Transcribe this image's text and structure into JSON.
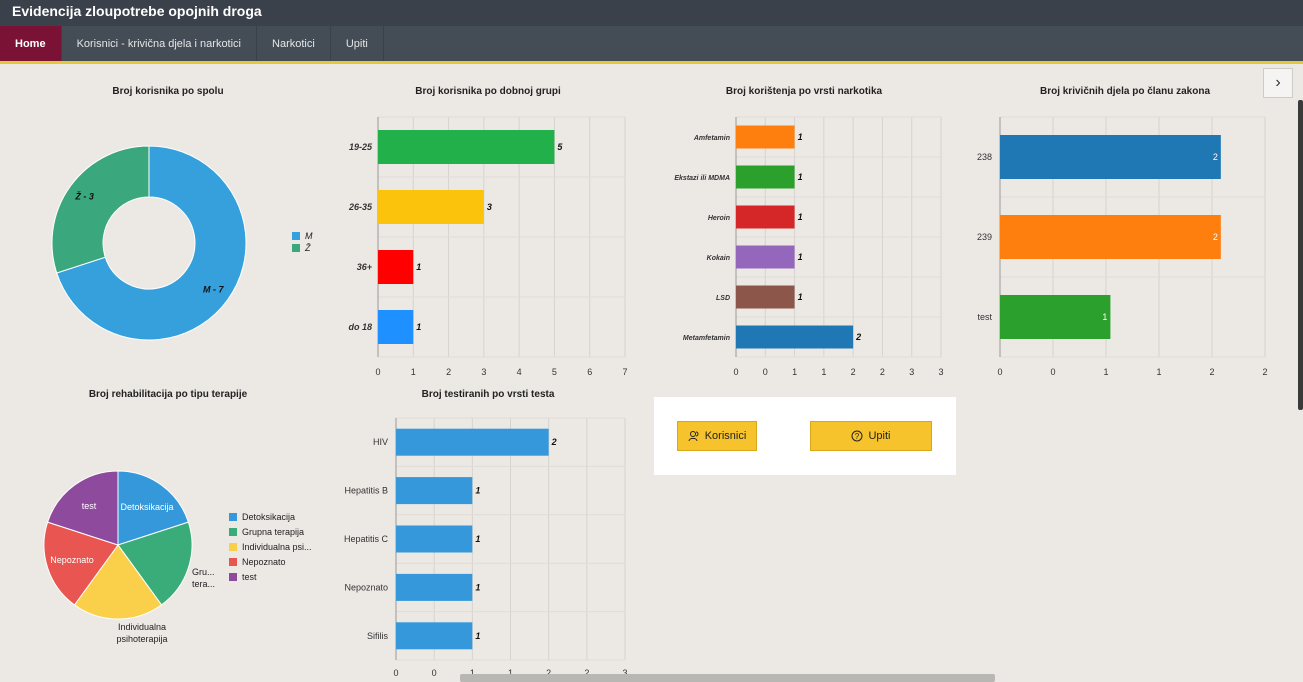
{
  "app": {
    "title": "Evidencija zloupotrebe opojnih droga"
  },
  "nav": {
    "items": [
      "Home",
      "Korisnici - krivična djela i narkotici",
      "Narkotici",
      "Upiti"
    ]
  },
  "icons": {
    "collapse": "chevron-right-icon",
    "korisnici": "users-icon",
    "upiti": "help-circle-icon"
  },
  "buttons": {
    "korisnici": "Korisnici",
    "upiti": "Upiti"
  },
  "colors": {
    "accent": "#7a1236",
    "nav": "#444c56",
    "title": "#3a414b",
    "underline": "#e3c93a",
    "button": "#f6c32d"
  },
  "chart_data": [
    {
      "type": "pie",
      "title": "Broj korisnika po spolu",
      "variant": "donut",
      "categories": [
        "M",
        "Ž"
      ],
      "values": [
        7,
        3
      ],
      "slice_labels": [
        "M - 7",
        "Ž - 3"
      ],
      "colors": [
        "#35a0dc",
        "#3aa77c"
      ],
      "legend": {
        "position": "right",
        "entries": [
          "M",
          "Ž"
        ]
      }
    },
    {
      "type": "bar",
      "orientation": "horizontal",
      "title": "Broj korisnika po dobnoj grupi",
      "categories": [
        "19-25",
        "26-35",
        "36+",
        "do 18"
      ],
      "values": [
        5,
        3,
        1,
        1
      ],
      "colors": [
        "#22b04b",
        "#fbc30c",
        "#fe0000",
        "#1e90ff"
      ],
      "xticks": [
        "0",
        "1",
        "2",
        "3",
        "4",
        "5",
        "6",
        "7"
      ],
      "xlim": [
        0,
        7
      ],
      "grid": true
    },
    {
      "type": "bar",
      "orientation": "horizontal",
      "title": "Broj korištenja po vrsti narkotika",
      "categories": [
        "Amfetamin",
        "Ekstazi ili MDMA",
        "Heroin",
        "Kokain",
        "LSD",
        "Metamfetamin"
      ],
      "values": [
        1,
        1,
        1,
        1,
        1,
        2
      ],
      "colors": [
        "#ff7f0e",
        "#2ca02c",
        "#d62728",
        "#9467bd",
        "#8c564b",
        "#1f77b4"
      ],
      "xticks": [
        "0",
        "0",
        "1",
        "1",
        "2",
        "2",
        "3",
        "3"
      ],
      "xlim": [
        0,
        3.5
      ],
      "grid": true
    },
    {
      "type": "bar",
      "orientation": "horizontal",
      "title": "Broj krivičnih djela po članu zakona",
      "categories": [
        "238",
        "239",
        "test"
      ],
      "values": [
        2,
        2,
        1
      ],
      "colors": [
        "#1f77b4",
        "#ff7f0e",
        "#2ca02c"
      ],
      "xticks": [
        "0",
        "0",
        "1",
        "1",
        "2",
        "2"
      ],
      "xlim": [
        0,
        2.4
      ],
      "grid": true
    },
    {
      "type": "pie",
      "title": "Broj rehabilitacija po tipu terapije",
      "categories": [
        "Detoksikacija",
        "Grupna terapija",
        "Individualna psihoterapija",
        "Nepoznato",
        "test"
      ],
      "values": [
        1,
        1,
        1,
        1,
        1
      ],
      "slice_labels": [
        "Detoksikacija",
        "Gru... tera...",
        "Individualna psihoterapija",
        "Nepoznato",
        "test"
      ],
      "colors": [
        "#3598db",
        "#3aac7a",
        "#fad04a",
        "#e95550",
        "#8e4a9d"
      ],
      "legend": {
        "position": "right",
        "entries": [
          "Detoksikacija",
          "Grupna terapija",
          "Individualna psi...",
          "Nepoznato",
          "test"
        ]
      }
    },
    {
      "type": "bar",
      "orientation": "horizontal",
      "title": "Broj testiranih po vrsti testa",
      "categories": [
        "HIV",
        "Hepatitis B",
        "Hepatitis C",
        "Nepoznato",
        "Sifilis"
      ],
      "values": [
        2,
        1,
        1,
        1,
        1
      ],
      "colors": [
        "#3598db",
        "#3598db",
        "#3598db",
        "#3598db",
        "#3598db"
      ],
      "xticks": [
        "0",
        "0",
        "1",
        "1",
        "2",
        "2",
        "3"
      ],
      "xlim": [
        0,
        3
      ],
      "grid": true
    }
  ]
}
